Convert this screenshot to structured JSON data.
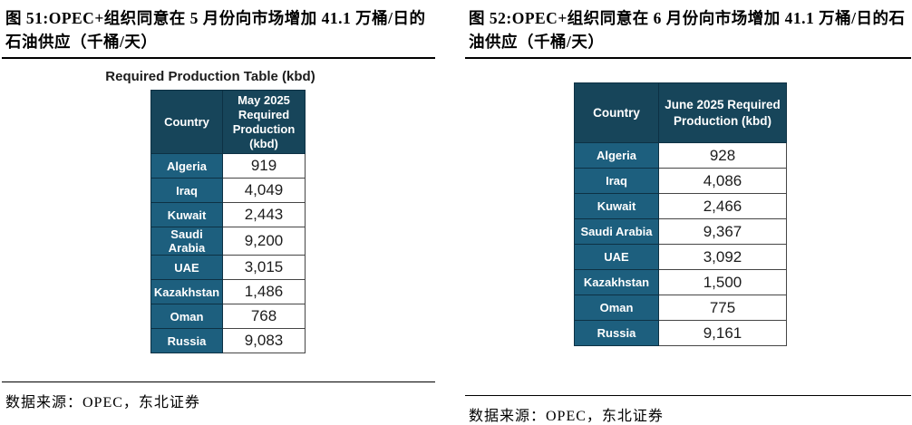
{
  "colors": {
    "table_header_bg": "#17455A",
    "table_row_bg": "#1D5F7E",
    "dark_cell_border": "#0D3144"
  },
  "figures": [
    {
      "caption": "图 51:OPEC+组织同意在 5 月份向市场增加 41.1 万桶/日的石油供应（千桶/天）",
      "inner_title": "Required Production Table (kbd)",
      "columns": [
        "Country",
        "May 2025 Required Production (kbd)"
      ],
      "rows": [
        [
          "Algeria",
          "919"
        ],
        [
          "Iraq",
          "4,049"
        ],
        [
          "Kuwait",
          "2,443"
        ],
        [
          "Saudi Arabia",
          "9,200"
        ],
        [
          "UAE",
          "3,015"
        ],
        [
          "Kazakhstan",
          "1,486"
        ],
        [
          "Oman",
          "768"
        ],
        [
          "Russia",
          "9,083"
        ]
      ],
      "source": "数据来源：OPEC，东北证券"
    },
    {
      "caption": "图 52:OPEC+组织同意在 6 月份向市场增加 41.1 万桶/日的石油供应（千桶/天）",
      "columns": [
        "Country",
        "June 2025 Required Production (kbd)"
      ],
      "rows": [
        [
          "Algeria",
          "928"
        ],
        [
          "Iraq",
          "4,086"
        ],
        [
          "Kuwait",
          "2,466"
        ],
        [
          "Saudi Arabia",
          "9,367"
        ],
        [
          "UAE",
          "3,092"
        ],
        [
          "Kazakhstan",
          "1,500"
        ],
        [
          "Oman",
          "775"
        ],
        [
          "Russia",
          "9,161"
        ]
      ],
      "source": "数据来源：OPEC，东北证券"
    }
  ]
}
